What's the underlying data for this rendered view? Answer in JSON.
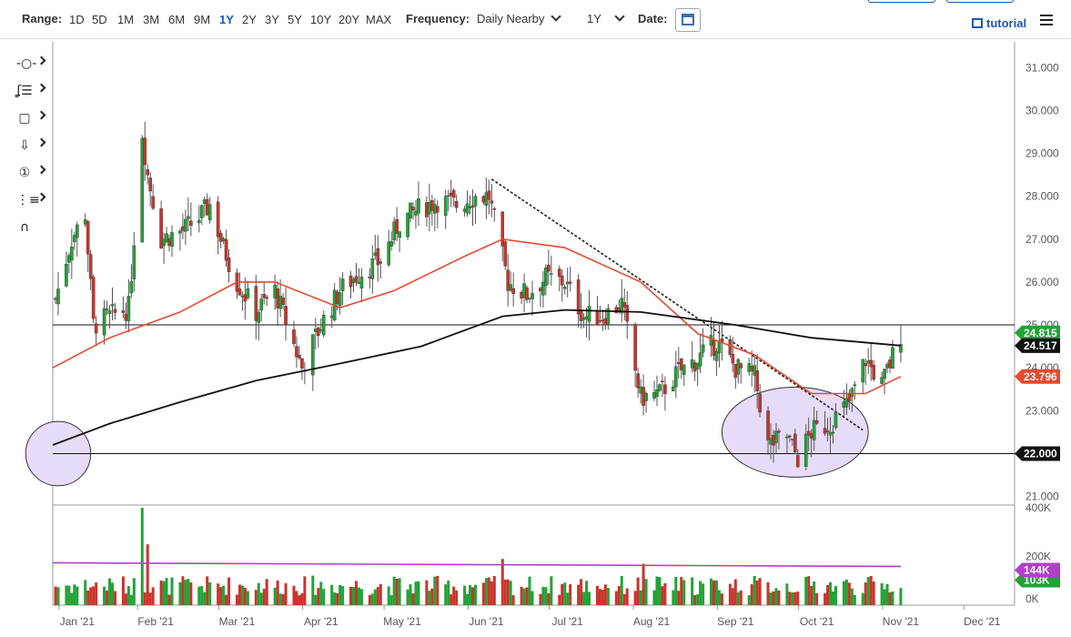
{
  "toolbar": {
    "range_label": "Range:",
    "ranges": [
      "1D",
      "5D",
      "1M",
      "3M",
      "6M",
      "9M",
      "1Y",
      "2Y",
      "3Y",
      "5Y",
      "10Y",
      "20Y",
      "MAX"
    ],
    "active_range": "1Y",
    "frequency_label": "Frequency:",
    "frequency_value": "Daily Nearby",
    "period_value": "1Y",
    "date_label": "Date:",
    "tutorial_label": "tutorial"
  },
  "side_tools": [
    "crosshair-tool",
    "fibonacci-tool",
    "rectangle-tool",
    "arrow-tool",
    "counter-tool",
    "pitchfork-tool",
    "magnet-tool"
  ],
  "colors": {
    "up": "#23a236",
    "down": "#c8352b",
    "ma_fast": "#e8492f",
    "ma_slow": "#111111",
    "volume_ma": "#b23fc9",
    "ellipse_fill": "#e6dcf7",
    "ellipse_stroke": "#333333",
    "accent": "#1b57b8"
  },
  "chart_data": {
    "type": "candlestick",
    "x_axis_labels": [
      "Jan '21",
      "Feb '21",
      "Mar '21",
      "Apr '21",
      "May '21",
      "Jun '21",
      "Jul '21",
      "Aug '21",
      "Sep '21",
      "Oct '21",
      "Nov '21",
      "Dec '21"
    ],
    "x_range": [
      "2020-12-30",
      "2021-12-20"
    ],
    "y_ticks": [
      "21.000",
      "22.000",
      "23.000",
      "24.000",
      "25.000",
      "26.000",
      "27.000",
      "28.000",
      "29.000",
      "30.000",
      "31.000"
    ],
    "ylim": [
      20.8,
      31.6
    ],
    "price_badges": [
      {
        "label": "24.815",
        "value": 24.815,
        "color": "#23a236"
      },
      {
        "label": "24.517",
        "value": 24.517,
        "color": "#111111"
      },
      {
        "label": "23.796",
        "value": 23.796,
        "color": "#e8492f"
      },
      {
        "label": "22.000",
        "value": 22.0,
        "color": "#111111"
      }
    ],
    "horizontal_lines": [
      25.0,
      22.0
    ],
    "trendline": {
      "from": [
        "2021-06-10",
        28.4
      ],
      "to": [
        "2021-10-25",
        22.55
      ]
    },
    "ellipses": [
      {
        "center": [
          "2021-01-01",
          22.0
        ],
        "rx_days": 12,
        "ry": 0.75
      },
      {
        "center": [
          "2021-09-30",
          22.5
        ],
        "rx_days": 27,
        "ry": 1.05
      }
    ],
    "closes_weekly": [
      [
        "2020-12-31",
        25.6
      ],
      [
        "2021-01-06",
        27.0
      ],
      [
        "2021-01-11",
        27.6
      ],
      [
        "2021-01-14",
        25.0
      ],
      [
        "2021-01-20",
        25.2
      ],
      [
        "2021-01-27",
        25.4
      ],
      [
        "2021-02-01",
        29.5
      ],
      [
        "2021-02-03",
        28.5
      ],
      [
        "2021-02-08",
        27.0
      ],
      [
        "2021-02-16",
        27.2
      ],
      [
        "2021-02-22",
        27.5
      ],
      [
        "2021-02-26",
        27.8
      ],
      [
        "2021-03-03",
        26.8
      ],
      [
        "2021-03-08",
        26.0
      ],
      [
        "2021-03-15",
        25.3
      ],
      [
        "2021-03-22",
        25.8
      ],
      [
        "2021-04-01",
        24.0
      ],
      [
        "2021-04-08",
        25.0
      ],
      [
        "2021-04-15",
        25.8
      ],
      [
        "2021-04-22",
        26.2
      ],
      [
        "2021-04-30",
        26.5
      ],
      [
        "2021-05-07",
        27.4
      ],
      [
        "2021-05-14",
        27.7
      ],
      [
        "2021-05-21",
        27.9
      ],
      [
        "2021-05-28",
        27.8
      ],
      [
        "2021-06-04",
        28.0
      ],
      [
        "2021-06-09",
        28.0
      ],
      [
        "2021-06-16",
        26.0
      ],
      [
        "2021-06-23",
        25.7
      ],
      [
        "2021-06-30",
        26.1
      ],
      [
        "2021-07-07",
        26.0
      ],
      [
        "2021-07-14",
        25.2
      ],
      [
        "2021-07-21",
        25.2
      ],
      [
        "2021-07-28",
        25.5
      ],
      [
        "2021-08-04",
        23.3
      ],
      [
        "2021-08-11",
        23.4
      ],
      [
        "2021-08-18",
        23.9
      ],
      [
        "2021-08-25",
        24.2
      ],
      [
        "2021-09-01",
        24.6
      ],
      [
        "2021-09-08",
        24.0
      ],
      [
        "2021-09-15",
        23.8
      ],
      [
        "2021-09-20",
        22.2
      ],
      [
        "2021-09-27",
        22.4
      ],
      [
        "2021-10-01",
        21.9
      ],
      [
        "2021-10-06",
        22.5
      ],
      [
        "2021-10-13",
        22.7
      ],
      [
        "2021-10-20",
        23.2
      ],
      [
        "2021-10-26",
        24.2
      ],
      [
        "2021-11-01",
        23.6
      ],
      [
        "2021-11-04",
        24.1
      ],
      [
        "2021-11-08",
        24.8
      ]
    ],
    "ma_fast_points": [
      [
        "2020-12-30",
        24.0
      ],
      [
        "2021-01-20",
        24.7
      ],
      [
        "2021-02-15",
        25.3
      ],
      [
        "2021-03-08",
        26.0
      ],
      [
        "2021-03-22",
        26.0
      ],
      [
        "2021-04-15",
        25.4
      ],
      [
        "2021-05-05",
        25.8
      ],
      [
        "2021-05-31",
        26.6
      ],
      [
        "2021-06-14",
        27.0
      ],
      [
        "2021-07-07",
        26.8
      ],
      [
        "2021-08-04",
        26.0
      ],
      [
        "2021-08-25",
        24.8
      ],
      [
        "2021-09-15",
        24.3
      ],
      [
        "2021-10-06",
        23.4
      ],
      [
        "2021-10-26",
        23.4
      ],
      [
        "2021-11-08",
        23.796
      ]
    ],
    "ma_slow_points": [
      [
        "2020-12-30",
        22.2
      ],
      [
        "2021-01-20",
        22.7
      ],
      [
        "2021-02-15",
        23.2
      ],
      [
        "2021-03-15",
        23.7
      ],
      [
        "2021-04-15",
        24.1
      ],
      [
        "2021-05-15",
        24.5
      ],
      [
        "2021-06-14",
        25.2
      ],
      [
        "2021-07-07",
        25.35
      ],
      [
        "2021-08-04",
        25.3
      ],
      [
        "2021-09-08",
        25.0
      ],
      [
        "2021-10-06",
        24.7
      ],
      [
        "2021-11-08",
        24.517
      ]
    ],
    "volume": {
      "y_ticks": [
        "0K",
        "200K",
        "400K"
      ],
      "ylim": [
        0,
        400000
      ],
      "badges": [
        {
          "label": "103K",
          "value": 103000,
          "color": "#23a236"
        },
        {
          "label": "144K",
          "value": 144000,
          "color": "#b23fc9"
        }
      ],
      "spikes": [
        [
          "2021-02-01",
          400000
        ],
        [
          "2021-02-03",
          250000
        ],
        [
          "2021-06-14",
          190000
        ],
        [
          "2021-08-05",
          170000
        ]
      ],
      "typical": 90000
    },
    "legend": "none",
    "grid": false
  }
}
